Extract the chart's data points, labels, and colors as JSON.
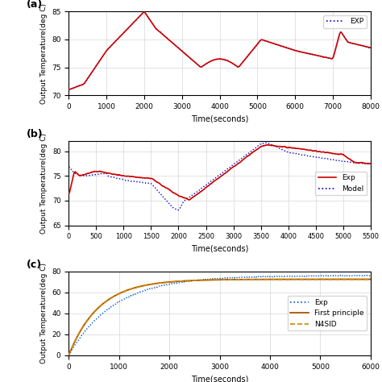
{
  "fig_width": 4.74,
  "fig_height": 4.74,
  "dpi": 100,
  "background_color": "#ffffff",
  "subplot_a": {
    "label": "(a)",
    "xlim": [
      0,
      8000
    ],
    "ylim": [
      70,
      85
    ],
    "yticks": [
      70,
      75,
      80,
      85
    ],
    "xticks": [
      0,
      1000,
      2000,
      3000,
      4000,
      5000,
      6000,
      7000,
      8000
    ],
    "xlabel": "Time(seconds)",
    "ylabel": "Output Temperature(deg C)",
    "legend": [
      "EXP"
    ],
    "line_solid_color": "#cc0000",
    "line_dot_color": "#0000cc"
  },
  "subplot_b": {
    "label": "(b)",
    "xlim": [
      0,
      5500
    ],
    "ylim": [
      65,
      82
    ],
    "yticks": [
      65,
      70,
      75,
      80
    ],
    "xticks": [
      0,
      500,
      1000,
      1500,
      2000,
      2500,
      3000,
      3500,
      4000,
      4500,
      5000,
      5500
    ],
    "xlabel": "Time(seconds)",
    "ylabel": "Output Temperature(deg C)",
    "legend": [
      "Exp",
      "Model"
    ],
    "line_solid_color": "#cc0000",
    "line_dot_color": "#0000cc"
  },
  "subplot_c": {
    "label": "(c)",
    "xlim": [
      0,
      6000
    ],
    "ylim": [
      0,
      80
    ],
    "yticks": [
      0,
      20,
      40,
      60,
      80
    ],
    "xlabel": "Time(seconds)",
    "ylabel": "Output Temperature(deg C)",
    "legend": [
      "Exp",
      "First principle",
      "N4SID"
    ],
    "line_dot_color": "#0055cc",
    "line_solid_color": "#aa5500",
    "line_dash_color": "#cc8800"
  }
}
